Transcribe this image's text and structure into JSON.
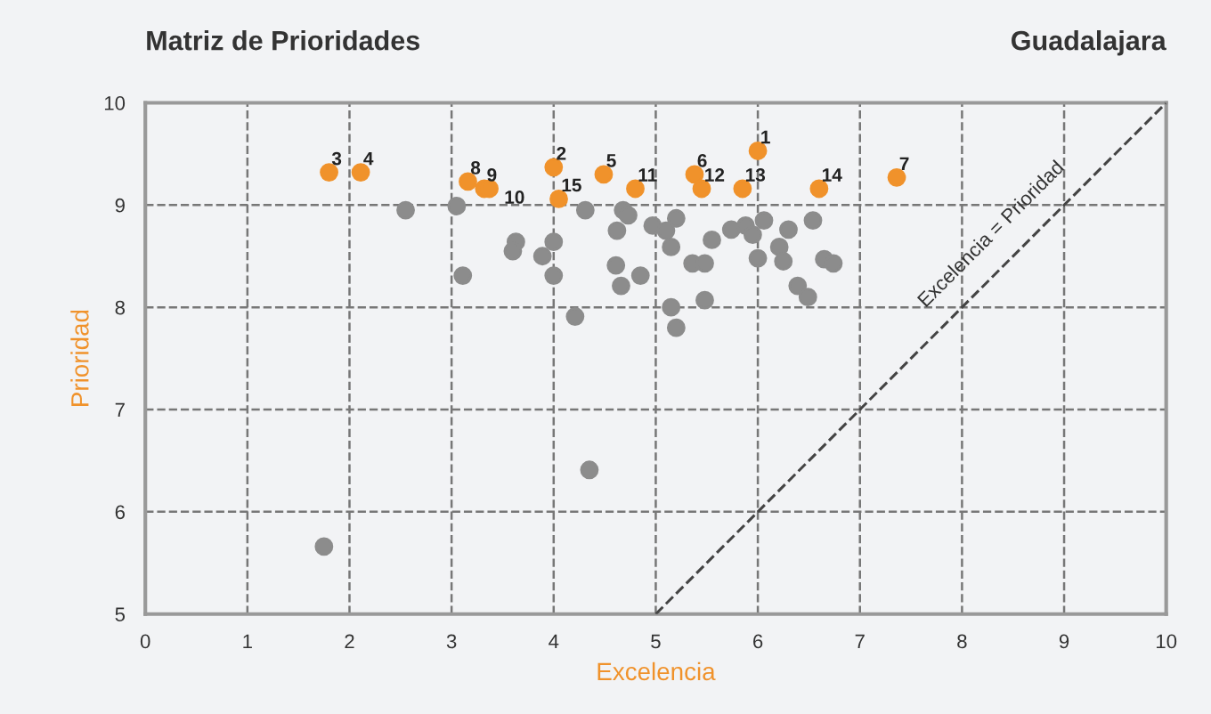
{
  "chart_data": {
    "type": "scatter",
    "title": "Matriz de Prioridades",
    "subtitle": "Guadalajara",
    "xlabel": "Excelencia",
    "ylabel": "Prioridad",
    "xlim": [
      0,
      10
    ],
    "ylim": [
      5,
      10
    ],
    "xticks": [
      0,
      1,
      2,
      3,
      4,
      5,
      6,
      7,
      8,
      9,
      10
    ],
    "yticks": [
      5,
      6,
      7,
      8,
      9,
      10
    ],
    "grid": true,
    "marker": "circle",
    "series": [
      {
        "color": "#8c8c8c",
        "x": [
          2.55,
          3.05,
          3.11,
          3.63,
          3.6,
          3.89,
          4.0,
          4.0,
          4.31,
          4.68,
          4.73,
          4.62,
          4.97,
          4.61,
          4.85,
          4.66,
          4.21,
          5.1,
          5.2,
          5.15,
          5.36,
          5.48,
          5.55,
          5.74,
          5.88,
          5.95,
          6.06,
          6.0,
          6.21,
          6.25,
          6.3,
          6.54,
          6.39,
          6.49,
          6.65,
          6.74,
          5.15,
          5.2,
          5.48,
          4.35,
          1.75
        ],
        "values": [
          8.95,
          8.99,
          8.31,
          8.64,
          8.55,
          8.5,
          8.64,
          8.31,
          8.95,
          8.95,
          8.9,
          8.75,
          8.8,
          8.41,
          8.31,
          8.21,
          7.91,
          8.75,
          8.87,
          8.59,
          8.43,
          8.43,
          8.66,
          8.76,
          8.8,
          8.71,
          8.85,
          8.48,
          8.59,
          8.45,
          8.76,
          8.85,
          8.21,
          8.1,
          8.47,
          8.43,
          8.0,
          7.8,
          8.07,
          6.41,
          5.66
        ]
      },
      {
        "color": "#f0922b",
        "x": [
          6.0,
          4.0,
          1.8,
          2.11,
          4.49,
          5.38,
          7.36,
          3.16,
          3.32,
          3.37,
          4.8,
          5.45,
          5.85,
          6.6,
          4.05
        ],
        "values": [
          9.53,
          9.37,
          9.32,
          9.32,
          9.3,
          9.3,
          9.27,
          9.23,
          9.16,
          9.16,
          9.16,
          9.16,
          9.16,
          9.16,
          9.06
        ]
      },
      {
        "type": "line",
        "name": "Excelencia = Prioridad",
        "color": "#444444",
        "line_style": "dashed",
        "marker": "none",
        "x": [
          5,
          10
        ],
        "values": [
          5,
          10
        ]
      }
    ],
    "annotations": [
      {
        "text": "1",
        "x": 6.0,
        "y": 9.53
      },
      {
        "text": "2",
        "x": 4.0,
        "y": 9.37
      },
      {
        "text": "3",
        "x": 1.8,
        "y": 9.32
      },
      {
        "text": "4",
        "x": 2.11,
        "y": 9.32
      },
      {
        "text": "5",
        "x": 4.49,
        "y": 9.3
      },
      {
        "text": "6",
        "x": 5.38,
        "y": 9.3
      },
      {
        "text": "7",
        "x": 7.36,
        "y": 9.27
      },
      {
        "text": "8",
        "x": 3.16,
        "y": 9.23
      },
      {
        "text": "9",
        "x": 3.32,
        "y": 9.16
      },
      {
        "text": "10",
        "x": 3.37,
        "y": 9.16
      },
      {
        "text": "11",
        "x": 4.8,
        "y": 9.16
      },
      {
        "text": "12",
        "x": 5.45,
        "y": 9.16
      },
      {
        "text": "13",
        "x": 5.85,
        "y": 9.16
      },
      {
        "text": "14",
        "x": 6.6,
        "y": 9.16
      },
      {
        "text": "15",
        "x": 4.05,
        "y": 9.06
      }
    ]
  }
}
